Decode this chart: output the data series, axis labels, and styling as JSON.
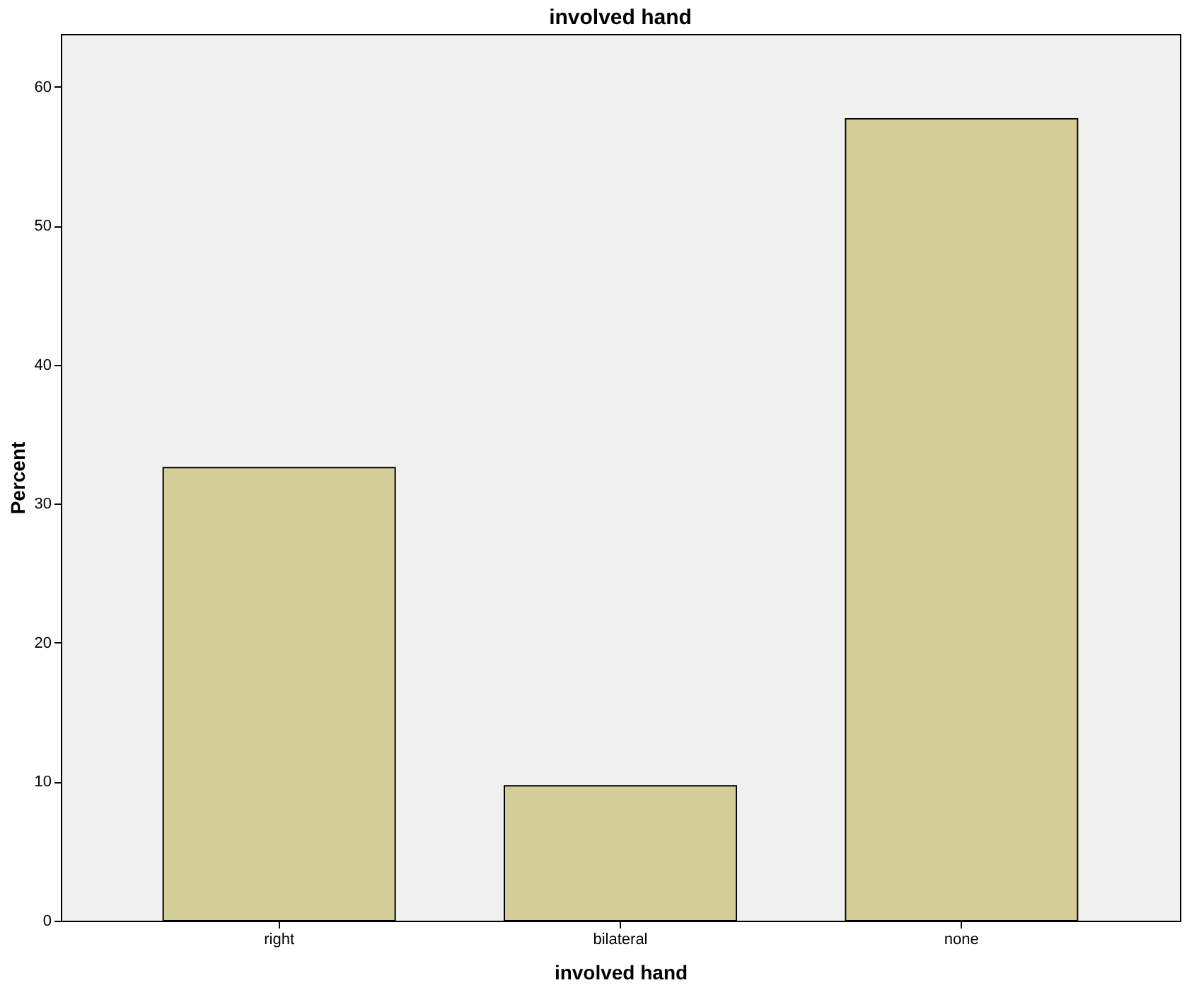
{
  "chart_data": {
    "type": "bar",
    "title": "involved hand",
    "xlabel": "involved hand",
    "ylabel": "Percent",
    "categories": [
      "right",
      "bilateral",
      "none"
    ],
    "values": [
      32.6,
      9.7,
      57.7
    ],
    "color": "#d3ce97",
    "ylim": [
      0,
      63.8
    ],
    "yticks": [
      0,
      10,
      20,
      30,
      40,
      50,
      60
    ],
    "grid": false
  }
}
